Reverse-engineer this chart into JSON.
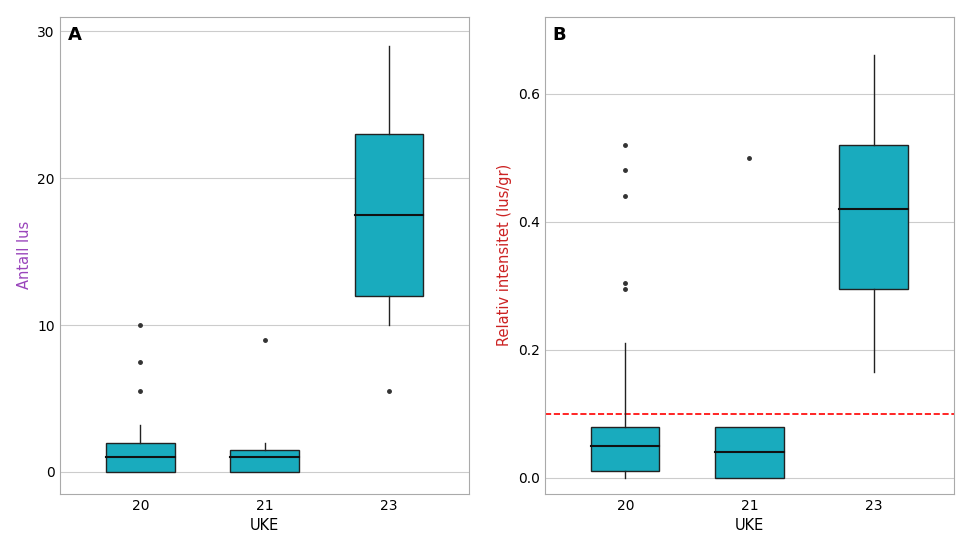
{
  "panel_A": {
    "label": "A",
    "xlabel": "UKE",
    "ylabel": "Antall lus",
    "ylim": [
      -1.5,
      31
    ],
    "yticks": [
      0,
      10,
      20,
      30
    ],
    "weeks": [
      "20",
      "21",
      "23"
    ],
    "boxes": [
      {
        "q1": 0.0,
        "median": 1.0,
        "q3": 2.0,
        "whislo": 0.0,
        "whishi": 3.2,
        "fliers": [
          5.5,
          7.5,
          10.0
        ]
      },
      {
        "q1": 0.0,
        "median": 1.0,
        "q3": 1.5,
        "whislo": 0.0,
        "whishi": 2.0,
        "fliers": [
          9.0
        ]
      },
      {
        "q1": 12.0,
        "median": 17.5,
        "q3": 23.0,
        "whislo": 10.0,
        "whishi": 29.0,
        "fliers": [
          5.5
        ]
      }
    ]
  },
  "panel_B": {
    "label": "B",
    "xlabel": "UKE",
    "ylabel": "Relativ intensitet (lus/gr)",
    "ylim": [
      -0.025,
      0.72
    ],
    "yticks": [
      0.0,
      0.2,
      0.4,
      0.6
    ],
    "weeks": [
      "20",
      "21",
      "23"
    ],
    "boxes": [
      {
        "q1": 0.01,
        "median": 0.05,
        "q3": 0.08,
        "whislo": 0.0,
        "whishi": 0.21,
        "fliers": [
          0.295,
          0.305,
          0.44,
          0.48,
          0.52
        ]
      },
      {
        "q1": 0.0,
        "median": 0.04,
        "q3": 0.08,
        "whislo": 0.0,
        "whishi": 0.08,
        "fliers": [
          0.5
        ]
      },
      {
        "q1": 0.295,
        "median": 0.42,
        "q3": 0.52,
        "whislo": 0.165,
        "whishi": 0.66,
        "fliers": []
      }
    ],
    "ref_line": 0.1,
    "ref_color": "#FF0000"
  },
  "box_color": "#19ABBE",
  "box_edge_color": "#222222",
  "median_color": "#111111",
  "flier_color": "#333333",
  "grid_color": "#cccccc",
  "bg_color": "#ffffff",
  "ylabel_A_color": "#9944bb",
  "ylabel_B_color": "#cc2222",
  "panel_label_fontsize": 13,
  "axis_label_fontsize": 10.5,
  "tick_fontsize": 10,
  "box_width": 0.55
}
